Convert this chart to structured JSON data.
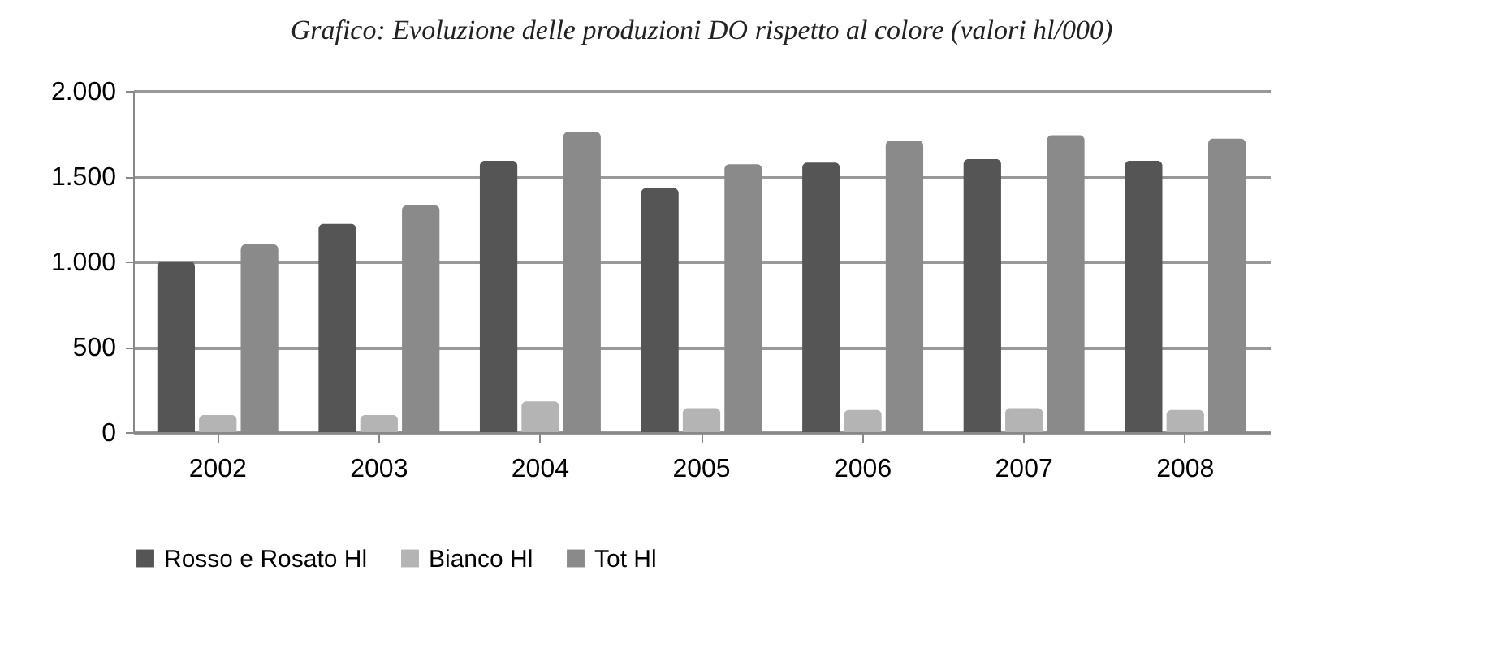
{
  "chart_data": {
    "type": "bar",
    "title": "Grafico: Evoluzione delle produzioni DO rispetto al colore (valori hl/000)",
    "categories": [
      "2002",
      "2003",
      "2004",
      "2005",
      "2006",
      "2007",
      "2008"
    ],
    "series": [
      {
        "name": "Rosso e Rosato Hl",
        "color": "#555555",
        "values": [
          1000,
          1220,
          1590,
          1430,
          1580,
          1600,
          1590
        ]
      },
      {
        "name": "Bianco Hl",
        "color": "#b4b4b4",
        "values": [
          100,
          100,
          180,
          140,
          130,
          140,
          130
        ]
      },
      {
        "name": "Tot Hl",
        "color": "#8a8a8a",
        "values": [
          1100,
          1330,
          1760,
          1570,
          1710,
          1740,
          1720
        ]
      }
    ],
    "ylim": [
      0,
      2000
    ],
    "yticks": [
      {
        "value": 0,
        "label": "0"
      },
      {
        "value": 500,
        "label": "500"
      },
      {
        "value": 1000,
        "label": "1.000"
      },
      {
        "value": 1500,
        "label": "1.500"
      },
      {
        "value": 2000,
        "label": "2.000"
      }
    ],
    "grid": "y",
    "legend": "bottom"
  }
}
